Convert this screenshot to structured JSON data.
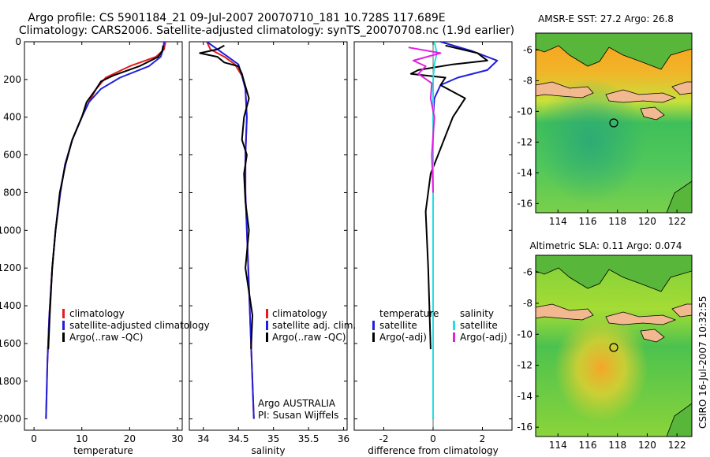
{
  "header": {
    "line1": "Argo profile: CS 5901184_21 09-Jul-2007 20070710_181 10.728S 117.689E",
    "line2": "Climatology: CARS2006. Satellite-adjusted climatology: synTS_20070708.nc (1.9d earlier)"
  },
  "side_label": "CSIRO 16-Jul-2007 10:32:55",
  "colors": {
    "red": "#e41a1c",
    "blue": "#1f1fdc",
    "black": "#000000",
    "cyan": "#22e0e0",
    "magenta": "#e020e0"
  },
  "panels": {
    "temperature": {
      "xlabel": "temperature",
      "legend": [
        {
          "label": "climatology",
          "color": "#e41a1c"
        },
        {
          "label": "satellite-adjusted climatology",
          "color": "#1f1fdc"
        },
        {
          "label": "Argo(..raw -QC)",
          "color": "#000000"
        }
      ]
    },
    "salinity": {
      "xlabel": "salinity",
      "legend": [
        {
          "label": "climatology",
          "color": "#e41a1c"
        },
        {
          "label": "satellite adj. clim.",
          "color": "#1f1fdc"
        },
        {
          "label": "Argo(..raw -QC)",
          "color": "#000000"
        }
      ],
      "note1": "Argo AUSTRALIA",
      "note2": "PI: Susan Wijffels"
    },
    "difference": {
      "xlabel": "difference from climatology",
      "legend_left_title": "temperature",
      "legend_right_title": "salinity",
      "legend_left": [
        {
          "label": "satellite",
          "color": "#1f1fdc"
        },
        {
          "label": "Argo(-adj)",
          "color": "#000000"
        }
      ],
      "legend_right": [
        {
          "label": "satellite",
          "color": "#22e0e0"
        },
        {
          "label": "Argo(-adj)",
          "color": "#e020e0"
        }
      ]
    },
    "sst_map": {
      "title": "AMSR-E SST: 27.2 Argo: 26.8"
    },
    "sla_map": {
      "title": "Altimetric SLA: 0.11 Argo: 0.074"
    }
  },
  "chart_data": [
    {
      "type": "line",
      "name": "temperature-profile",
      "xlabel": "temperature",
      "ylabel": "",
      "xlim": [
        -2,
        31
      ],
      "ylim": [
        2060,
        0
      ],
      "xticks": [
        0,
        10,
        20,
        30
      ],
      "yticks": [
        0,
        200,
        400,
        600,
        800,
        1000,
        1200,
        1400,
        1600,
        1800,
        2000
      ],
      "series": [
        {
          "name": "climatology",
          "color": "#e41a1c",
          "x": [
            27.5,
            27.2,
            25.5,
            20,
            15,
            13,
            11.5,
            10,
            8,
            6.5,
            5.5,
            4.5,
            3.8,
            3.2,
            2.8,
            2.5
          ],
          "y": [
            0,
            40,
            80,
            130,
            190,
            250,
            320,
            400,
            520,
            650,
            800,
            1000,
            1200,
            1450,
            1700,
            2000
          ]
        },
        {
          "name": "satellite-adjusted climatology",
          "color": "#1f1fdc",
          "x": [
            27.2,
            27.0,
            26.5,
            24,
            18,
            14,
            11.5,
            10,
            8,
            6.5,
            5.5,
            4.5,
            3.8,
            3.2,
            2.8,
            2.5
          ],
          "y": [
            0,
            40,
            80,
            130,
            190,
            250,
            320,
            400,
            520,
            650,
            800,
            1000,
            1200,
            1450,
            1700,
            2000
          ]
        },
        {
          "name": "Argo(..raw -QC)",
          "color": "#000000",
          "x": [
            27.0,
            26.8,
            26.0,
            22,
            16.5,
            14,
            13,
            11,
            10,
            8,
            6.6,
            5.4,
            4.5,
            3.8,
            3.3,
            3.0
          ],
          "y": [
            20,
            50,
            80,
            130,
            180,
            210,
            250,
            320,
            400,
            520,
            650,
            800,
            1000,
            1200,
            1450,
            1630
          ]
        }
      ]
    },
    {
      "type": "line",
      "name": "salinity-profile",
      "xlabel": "salinity",
      "ylabel": "",
      "xlim": [
        33.8,
        36.05
      ],
      "ylim": [
        2060,
        0
      ],
      "xticks": [
        34,
        34.5,
        35,
        35.5,
        36
      ],
      "yticks": [],
      "series": [
        {
          "name": "climatology",
          "color": "#e41a1c",
          "x": [
            34.05,
            34.1,
            34.3,
            34.45,
            34.55,
            34.6,
            34.62,
            34.6,
            34.6,
            34.62,
            34.65,
            34.68,
            34.72
          ],
          "y": [
            0,
            40,
            80,
            120,
            180,
            250,
            400,
            600,
            800,
            1000,
            1300,
            1600,
            2000
          ]
        },
        {
          "name": "satellite adj. clim.",
          "color": "#1f1fdc",
          "x": [
            34.05,
            34.2,
            34.35,
            34.5,
            34.55,
            34.6,
            34.62,
            34.6,
            34.6,
            34.62,
            34.65,
            34.68,
            34.72
          ],
          "y": [
            0,
            40,
            80,
            120,
            180,
            250,
            400,
            600,
            800,
            1000,
            1300,
            1600,
            2000
          ]
        },
        {
          "name": "Argo(..raw -QC)",
          "color": "#000000",
          "x": [
            34.3,
            34.2,
            33.95,
            34.2,
            34.3,
            34.5,
            34.55,
            34.58,
            34.65,
            34.58,
            34.55,
            34.62,
            34.58,
            34.6,
            34.65,
            34.6,
            34.7,
            34.68
          ],
          "y": [
            20,
            40,
            60,
            80,
            110,
            130,
            170,
            210,
            300,
            400,
            520,
            600,
            700,
            850,
            1000,
            1200,
            1450,
            1630
          ]
        }
      ]
    },
    {
      "type": "line",
      "name": "difference-profile",
      "xlabel": "difference from climatology",
      "ylabel": "",
      "xlim": [
        -3.2,
        3.2
      ],
      "ylim": [
        2060,
        0
      ],
      "xticks": [
        -2,
        0,
        2
      ],
      "yticks": [],
      "series": [
        {
          "name": "temperature satellite",
          "color": "#1f1fdc",
          "x": [
            0.3,
            1.6,
            2.6,
            2.2,
            1.0,
            0.3,
            0.05,
            0,
            0,
            0,
            0,
            0
          ],
          "y": [
            0,
            50,
            100,
            150,
            190,
            230,
            300,
            400,
            800,
            1200,
            1600,
            2000
          ]
        },
        {
          "name": "temperature Argo(-adj)",
          "color": "#000000",
          "x": [
            0.5,
            1.8,
            2.2,
            0.8,
            -0.6,
            -0.9,
            0.5,
            0.3,
            1.3,
            0.8,
            0.5,
            0.2,
            -0.1,
            -0.3,
            -0.2,
            -0.1
          ],
          "y": [
            20,
            60,
            100,
            120,
            150,
            170,
            190,
            230,
            300,
            400,
            500,
            600,
            700,
            900,
            1200,
            1630
          ]
        },
        {
          "name": "salinity satellite",
          "color": "#22e0e0",
          "x": [
            0.05,
            0.15,
            0.05,
            0,
            0,
            0,
            0,
            0
          ],
          "y": [
            0,
            60,
            120,
            200,
            500,
            1000,
            1500,
            2000
          ]
        },
        {
          "name": "salinity Argo(-adj)",
          "color": "#e020e0",
          "x": [
            -1.0,
            0.3,
            -0.8,
            -0.3,
            -0.6,
            -0.05,
            -0.1,
            0.05,
            -0.05,
            0
          ],
          "y": [
            30,
            60,
            100,
            130,
            170,
            220,
            300,
            400,
            600,
            800
          ]
        }
      ]
    },
    {
      "type": "heatmap",
      "name": "sst-map",
      "title": "AMSR-E SST: 27.2 Argo: 26.8",
      "xlim": [
        112.5,
        123
      ],
      "ylim": [
        -16.6,
        -4.9
      ],
      "xticks": [
        114,
        116,
        118,
        120,
        122
      ],
      "yticks": [
        -6,
        -8,
        -10,
        -12,
        -14,
        -16
      ],
      "argo_position": {
        "lon": 117.689,
        "lat": -10.728
      }
    },
    {
      "type": "heatmap",
      "name": "sla-map",
      "title": "Altimetric SLA: 0.11 Argo: 0.074",
      "xlim": [
        112.5,
        123
      ],
      "ylim": [
        -16.6,
        -4.9
      ],
      "xticks": [
        114,
        116,
        118,
        120,
        122
      ],
      "yticks": [
        -6,
        -8,
        -10,
        -12,
        -14,
        -16
      ],
      "argo_position": {
        "lon": 117.689,
        "lat": -10.728
      }
    }
  ]
}
